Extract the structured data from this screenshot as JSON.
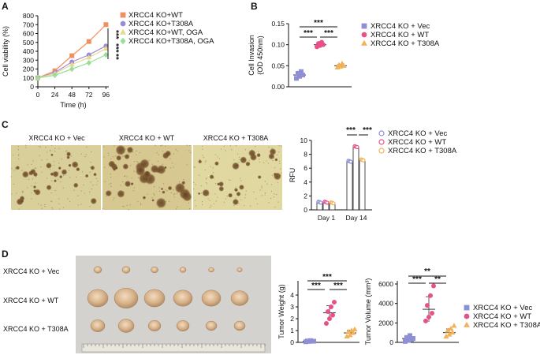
{
  "panels": [
    "A",
    "B",
    "C",
    "D"
  ],
  "colors": {
    "vec": "#8f8fd6",
    "wt": "#e8508a",
    "t308a": "#f2b25a",
    "A_wt": "#f09060",
    "A_t308a": "#9a8ad8",
    "A_wt_oga": "#e8d890",
    "A_t308a_oga": "#98e098"
  },
  "chart_data": [
    {
      "id": "A",
      "type": "line",
      "xlabel": "Time (h)",
      "ylabel": "Cell viability (%)",
      "x": [
        0,
        24,
        48,
        72,
        96
      ],
      "xlim": [
        0,
        100
      ],
      "ylim": [
        0,
        800
      ],
      "yticks": [
        0,
        100,
        200,
        300,
        400,
        500,
        600,
        700,
        800
      ],
      "series": [
        {
          "name": "XRCC4 KO+WT",
          "marker": "square",
          "values": [
            100,
            180,
            350,
            510,
            700
          ]
        },
        {
          "name": "XRCC4 KO+T308A",
          "marker": "circle",
          "values": [
            100,
            160,
            280,
            360,
            460
          ]
        },
        {
          "name": "XRCC4 KO+WT, OGA",
          "marker": "triangle",
          "values": [
            100,
            150,
            250,
            330,
            430
          ]
        },
        {
          "name": "XRCC4 KO+T308A, OGA",
          "marker": "diamond",
          "values": [
            100,
            130,
            200,
            270,
            360
          ]
        }
      ],
      "significance": [
        "***",
        "***",
        "**"
      ],
      "legend": "top-right"
    },
    {
      "id": "B",
      "type": "scatter",
      "ylabel_lines": [
        "Cell Invasion",
        "(OD 450nm)"
      ],
      "ylim": [
        0,
        0.15
      ],
      "yticks": [
        "0.00",
        "0.05",
        "0.10",
        "0.15"
      ],
      "groups": [
        {
          "name": "XRCC4 KO + Vec",
          "marker": "square",
          "mean": 0.028,
          "points": [
            0.02,
            0.025,
            0.028,
            0.032,
            0.036
          ]
        },
        {
          "name": "XRCC4 KO + WT",
          "marker": "circle",
          "mean": 0.1,
          "points": [
            0.095,
            0.098,
            0.1,
            0.103,
            0.106
          ]
        },
        {
          "name": "XRCC4 KO + T308A",
          "marker": "triangle",
          "mean": 0.05,
          "points": [
            0.046,
            0.048,
            0.05,
            0.052,
            0.055
          ]
        }
      ],
      "significance": [
        "***",
        "***",
        "***"
      ],
      "legend": "right"
    },
    {
      "id": "C",
      "type": "bar",
      "ylabel": "RFU",
      "categories": [
        "Day 1",
        "Day 14"
      ],
      "ylim": [
        0,
        10
      ],
      "yticks": [
        0,
        2,
        4,
        6,
        8,
        10
      ],
      "series": [
        {
          "name": "XRCC4 KO + Vec",
          "values": [
            1.1,
            7.0
          ]
        },
        {
          "name": "XRCC4 KO + WT",
          "values": [
            1.1,
            9.1
          ]
        },
        {
          "name": "XRCC4 KO + T308A",
          "values": [
            1.0,
            7.2
          ]
        }
      ],
      "significance": [
        "***",
        "***"
      ],
      "legend": "right"
    },
    {
      "id": "D1",
      "type": "scatter",
      "ylabel": "Tumor Weight (g)",
      "ylim": [
        0,
        4
      ],
      "yticks": [
        0,
        1,
        2,
        3,
        4
      ],
      "groups": [
        {
          "name": "XRCC4 KO + Vec",
          "marker": "square",
          "mean": 0.1,
          "points": [
            0.05,
            0.08,
            0.1,
            0.12,
            0.15,
            0.1
          ]
        },
        {
          "name": "XRCC4 KO + WT",
          "marker": "circle",
          "mean": 2.5,
          "points": [
            1.6,
            2.0,
            2.3,
            2.6,
            3.0,
            3.4
          ]
        },
        {
          "name": "XRCC4 KO + T308A",
          "marker": "triangle",
          "mean": 0.8,
          "points": [
            0.5,
            0.6,
            0.8,
            0.9,
            1.0,
            1.1
          ]
        }
      ],
      "significance": [
        "***",
        "***",
        "***"
      ]
    },
    {
      "id": "D2",
      "type": "scatter",
      "ylabel": "Tumor Volume (mm³)",
      "ylim": [
        0,
        6000
      ],
      "yticks": [
        0,
        2000,
        4000,
        6000
      ],
      "groups": [
        {
          "name": "XRCC4 KO + Vec",
          "marker": "square",
          "mean": 400,
          "points": [
            100,
            200,
            300,
            500,
            700,
            400
          ]
        },
        {
          "name": "XRCC4 KO + WT",
          "marker": "circle",
          "mean": 3400,
          "points": [
            2200,
            2600,
            3000,
            3800,
            4800,
            5800
          ]
        },
        {
          "name": "XRCC4 KO + T308A",
          "marker": "triangle",
          "mean": 1000,
          "points": [
            600,
            800,
            1000,
            1200,
            1400,
            1700
          ]
        }
      ],
      "significance": [
        "**",
        "***",
        "**"
      ],
      "legend": "right"
    }
  ],
  "photos_c": [
    "XRCC4 KO + Vec",
    "XRCC4 KO + WT",
    "XRCC4 KO + T308A"
  ],
  "photo_d_rows": [
    "XRCC4 KO + Vec",
    "XRCC4 KO + WT",
    "XRCC4 KO + T308A"
  ]
}
